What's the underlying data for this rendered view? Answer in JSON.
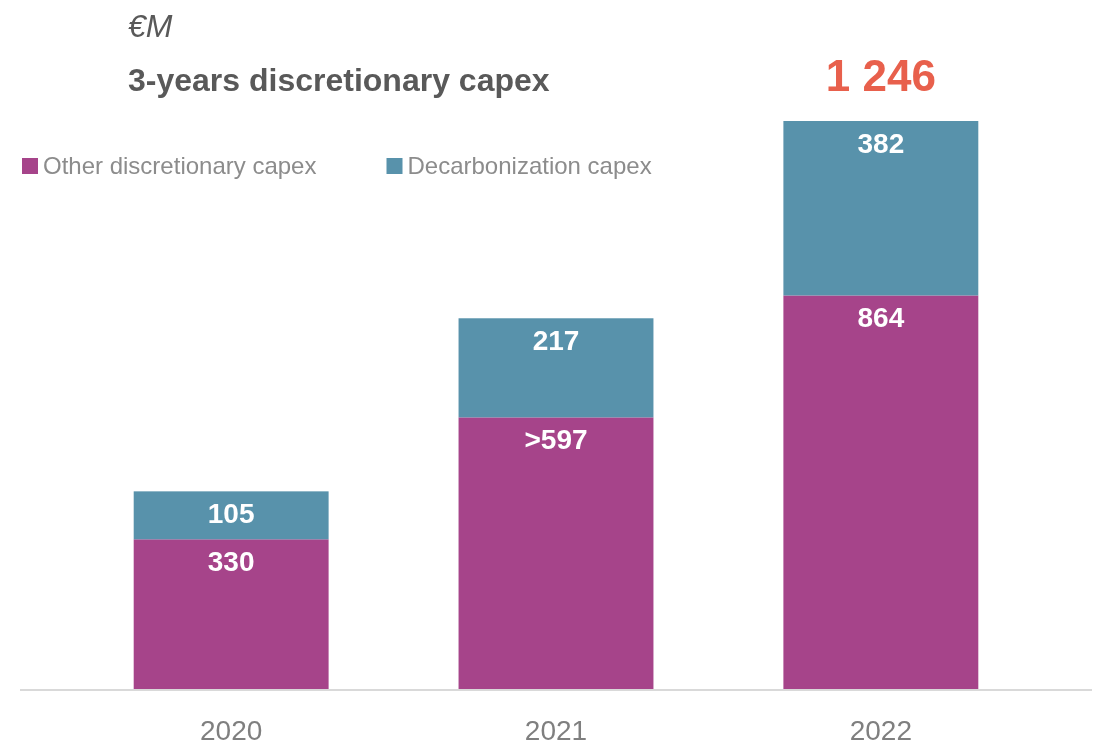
{
  "chart_data": {
    "type": "bar",
    "title": "3-years discretionary capex",
    "subtitle": "€M",
    "stacked": true,
    "categories": [
      "2020",
      "2021",
      "2022"
    ],
    "series": [
      {
        "name": "Other discretionary capex",
        "color": "#a6448a",
        "values": [
          330,
          597,
          864
        ],
        "value_labels": [
          "330",
          ">597",
          "864"
        ]
      },
      {
        "name": "Decarbonization capex",
        "color": "#5892ab",
        "values": [
          105,
          217,
          382
        ],
        "value_labels": [
          "105",
          "217",
          "382"
        ]
      }
    ],
    "totals": [
      null,
      null,
      "1 246"
    ],
    "legend": "top left",
    "grid": false
  }
}
